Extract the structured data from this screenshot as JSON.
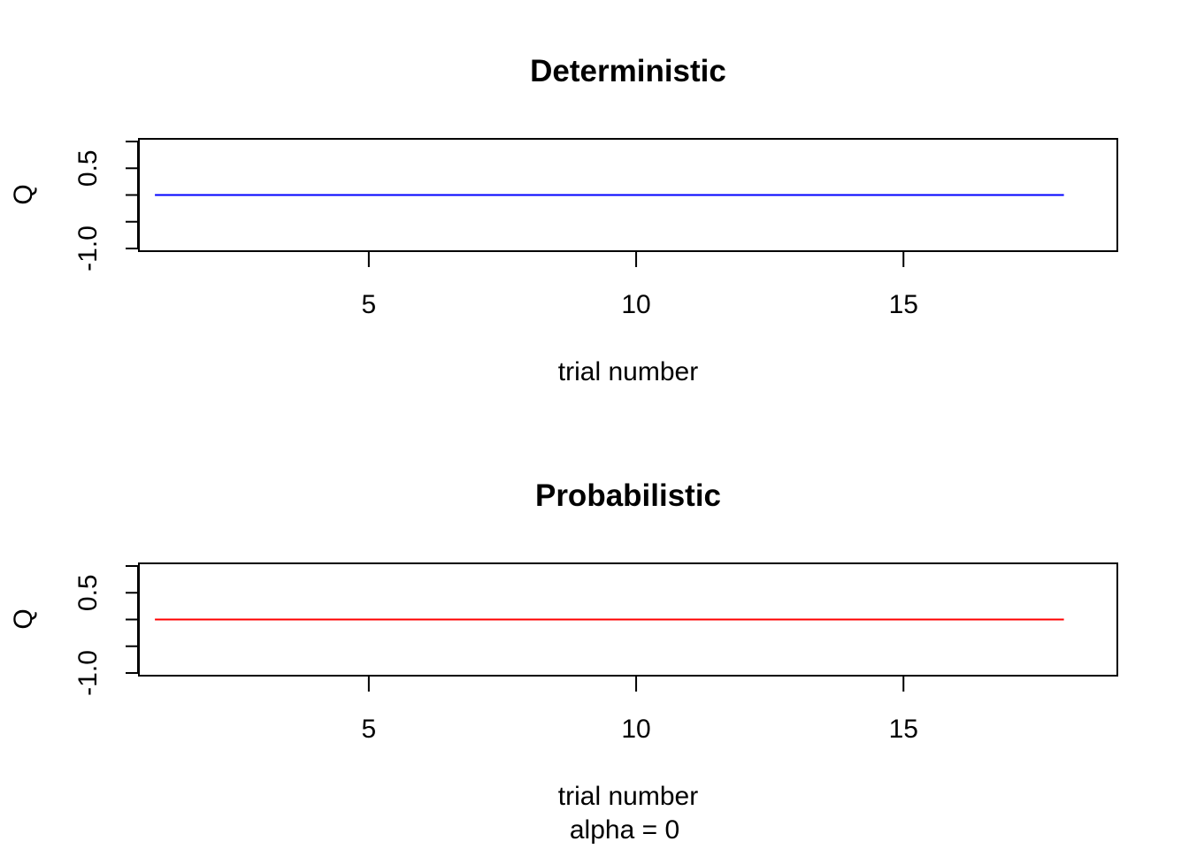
{
  "chart_data": [
    {
      "type": "line",
      "title": "Deterministic",
      "xlabel": "trial number",
      "ylabel": "Q",
      "subtitle": "",
      "xlim": [
        0.7,
        19.0
      ],
      "ylim": [
        -1.05,
        1.05
      ],
      "x_ticks": [
        5,
        10,
        15
      ],
      "x_tick_labels": [
        "5",
        "10",
        "15"
      ],
      "y_ticks": [
        -1.0,
        -0.5,
        0.0,
        0.5,
        1.0
      ],
      "y_tick_labels": [
        "-1.0",
        "",
        "",
        "0.5",
        ""
      ],
      "grid": false,
      "series": [
        {
          "color": "#0000ff",
          "x": [
            1,
            2,
            3,
            4,
            5,
            6,
            7,
            8,
            9,
            10,
            11,
            12,
            13,
            14,
            15,
            16,
            17,
            18
          ],
          "values": [
            0,
            0,
            0,
            0,
            0,
            0,
            0,
            0,
            0,
            0,
            0,
            0,
            0,
            0,
            0,
            0,
            0,
            0
          ]
        }
      ]
    },
    {
      "type": "line",
      "title": "Probabilistic",
      "xlabel": "trial number",
      "ylabel": "Q",
      "subtitle": "alpha = 0",
      "xlim": [
        0.7,
        19.0
      ],
      "ylim": [
        -1.05,
        1.05
      ],
      "x_ticks": [
        5,
        10,
        15
      ],
      "x_tick_labels": [
        "5",
        "10",
        "15"
      ],
      "y_ticks": [
        -1.0,
        -0.5,
        0.0,
        0.5,
        1.0
      ],
      "y_tick_labels": [
        "-1.0",
        "",
        "",
        "0.5",
        ""
      ],
      "grid": false,
      "series": [
        {
          "color": "#ff0000",
          "x": [
            1,
            2,
            3,
            4,
            5,
            6,
            7,
            8,
            9,
            10,
            11,
            12,
            13,
            14,
            15,
            16,
            17,
            18
          ],
          "values": [
            0,
            0,
            0,
            0,
            0,
            0,
            0,
            0,
            0,
            0,
            0,
            0,
            0,
            0,
            0,
            0,
            0,
            0
          ]
        }
      ]
    }
  ]
}
